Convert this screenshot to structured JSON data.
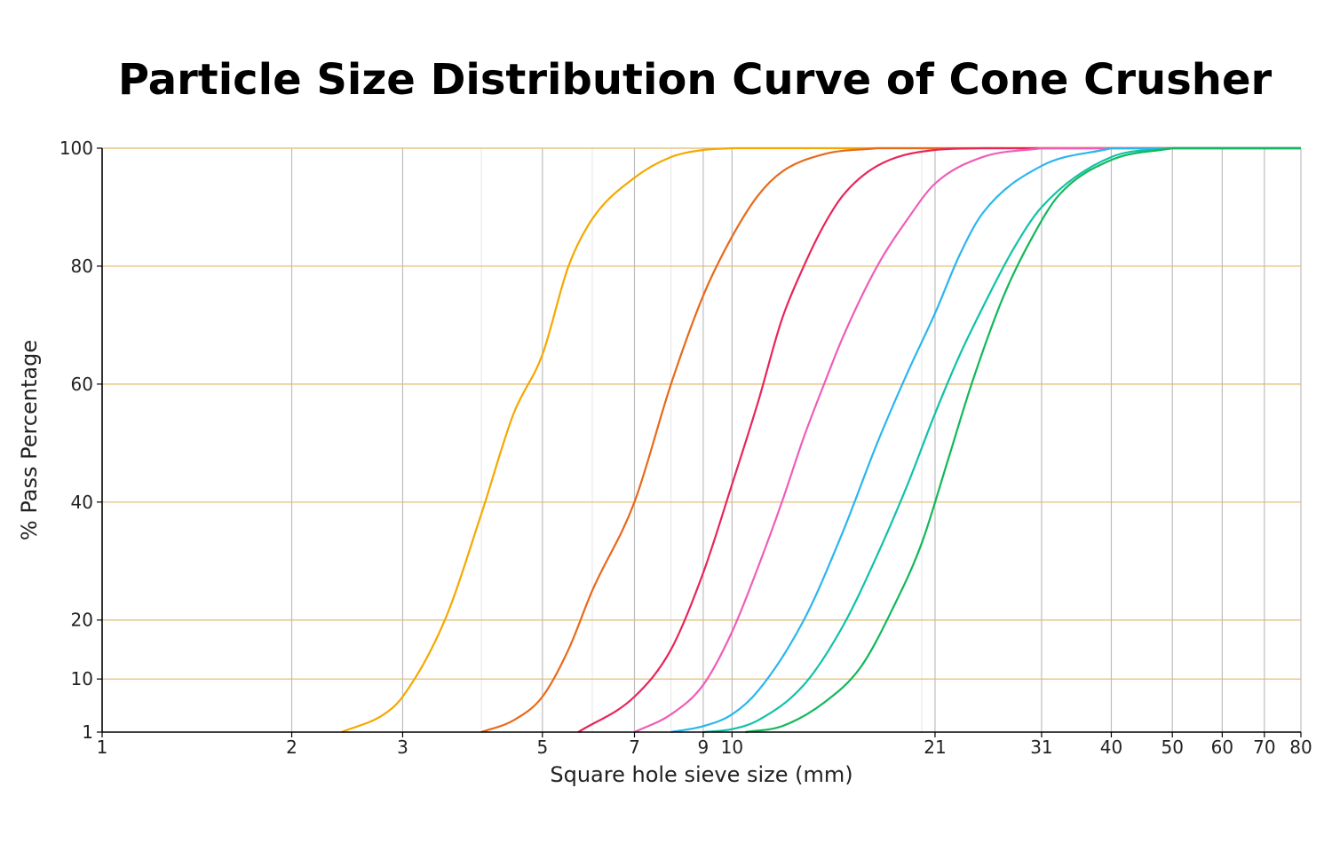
{
  "chart_data": {
    "type": "line",
    "title": "Particle Size Distribution Curve of Cone Crusher",
    "xlabel": "Square hole sieve size (mm)",
    "ylabel": "% Pass Percentage",
    "xscale": "log",
    "xlim": [
      1,
      80
    ],
    "ylim": [
      1,
      100
    ],
    "x_ticks": [
      1,
      2,
      3,
      5,
      7,
      9,
      10,
      21,
      31,
      40,
      50,
      60,
      70,
      80
    ],
    "y_ticks": [
      1,
      10,
      20,
      40,
      60,
      80,
      100
    ],
    "grid": "on",
    "series": [
      {
        "color": "#f5a800",
        "x": [
          2.4,
          2.8,
          3.0,
          3.5,
          4.0,
          4.5,
          5.0,
          5.5,
          6.0,
          7.0,
          8.0,
          9.0,
          10.0
        ],
        "values": [
          1,
          4,
          7,
          20,
          38,
          55,
          65,
          80,
          88,
          95,
          98.5,
          99.7,
          100
        ]
      },
      {
        "color": "#e8691b",
        "x": [
          4.0,
          4.5,
          5.0,
          5.5,
          6.0,
          7.0,
          8.0,
          9.0,
          10.0,
          11.0,
          12.0,
          14.0,
          17.0
        ],
        "values": [
          1,
          3,
          7,
          15,
          25,
          40,
          60,
          75,
          85,
          92,
          96,
          99,
          100
        ]
      },
      {
        "color": "#e8255a",
        "x": [
          5.7,
          7.0,
          8.0,
          9.0,
          10.0,
          11.0,
          12.0,
          13.0,
          14.0,
          15.0,
          17.0,
          21.0,
          25.0
        ],
        "values": [
          1,
          7,
          15,
          28,
          43,
          57,
          71,
          80,
          87,
          92,
          97,
          99.7,
          100
        ]
      },
      {
        "color": "#f05db8",
        "x": [
          7.0,
          8.0,
          9.0,
          10.0,
          11.0,
          12.0,
          13.0,
          14.0,
          15.0,
          17.0,
          19.0,
          21.0,
          25.0,
          31.0
        ],
        "values": [
          1,
          4,
          9,
          18,
          29,
          40,
          51,
          60,
          68,
          80,
          88,
          94,
          98.5,
          100
        ]
      },
      {
        "color": "#2ab6ee",
        "x": [
          8.0,
          9.0,
          10.0,
          11.0,
          13.0,
          15.0,
          17.0,
          19.0,
          21.0,
          23.0,
          25.0,
          31.0,
          40.0
        ],
        "values": [
          1,
          2,
          4,
          8,
          20,
          35,
          50,
          62,
          72,
          82,
          89,
          97,
          100
        ]
      },
      {
        "color": "#10c2a8",
        "x": [
          9.0,
          10.0,
          11.0,
          13.0,
          15.0,
          17.0,
          19.0,
          21.0,
          23.0,
          25.0,
          28.0,
          31.0,
          40.0,
          50.0
        ],
        "values": [
          1,
          1.5,
          3,
          9,
          19,
          31,
          43,
          55,
          65,
          73,
          83,
          90,
          98.5,
          100
        ]
      },
      {
        "color": "#12b85a",
        "x": [
          10.5,
          12.0,
          14.0,
          16.0,
          18.0,
          20.0,
          22.0,
          24.0,
          27.0,
          30.0,
          33.0,
          40.0,
          50.0
        ],
        "values": [
          1,
          2,
          6,
          12,
          22,
          33,
          47,
          60,
          75,
          85,
          92,
          98,
          100
        ]
      }
    ]
  },
  "colors": {
    "grid_vertical": "#bdbdbd",
    "grid_vertical_minor": "#e6e6e6",
    "grid_horizontal": "#e2b96a",
    "axis": "#000000"
  }
}
